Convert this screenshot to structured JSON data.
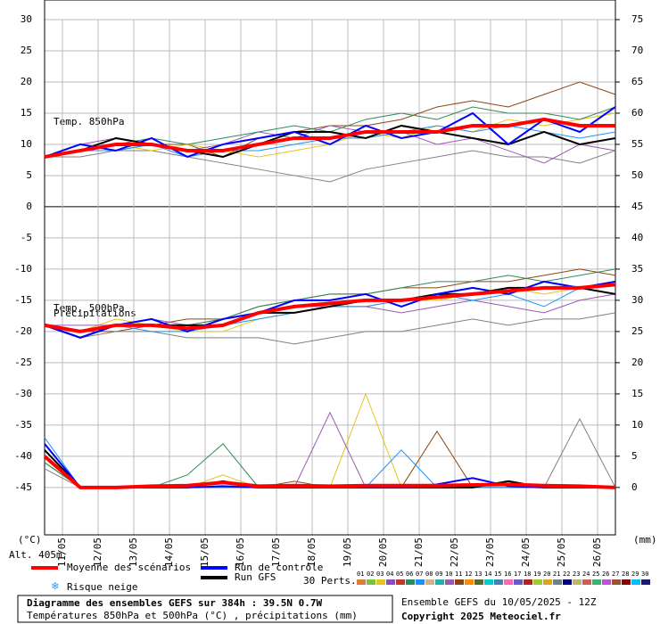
{
  "chart_data": {
    "type": "line",
    "xlim": [
      0,
      384
    ],
    "xticks": [
      {
        "value": 12,
        "label": "11/05"
      },
      {
        "value": 36,
        "label": "12/05"
      },
      {
        "value": 60,
        "label": "13/05"
      },
      {
        "value": 84,
        "label": "14/05"
      },
      {
        "value": 108,
        "label": "15/05"
      },
      {
        "value": 132,
        "label": "16/05"
      },
      {
        "value": 156,
        "label": "17/05"
      },
      {
        "value": 180,
        "label": "18/05"
      },
      {
        "value": 204,
        "label": "19/05"
      },
      {
        "value": 228,
        "label": "20/05"
      },
      {
        "value": 252,
        "label": "21/05"
      },
      {
        "value": 276,
        "label": "22/05"
      },
      {
        "value": 300,
        "label": "23/05"
      },
      {
        "value": 324,
        "label": "24/05"
      },
      {
        "value": 348,
        "label": "25/05"
      },
      {
        "value": 372,
        "label": "26/05"
      }
    ],
    "ylim": [
      -52.6,
      30
    ],
    "yticks": [
      30,
      25,
      20,
      15,
      10,
      5,
      0,
      -5,
      -10,
      -15,
      -20,
      -25,
      -30,
      -35,
      -40,
      -45
    ],
    "y2lim": [
      -7.6,
      75
    ],
    "y2ticks": [
      75,
      70,
      65,
      60,
      55,
      50,
      45,
      40,
      35,
      30,
      25,
      20,
      15,
      10,
      5,
      0
    ],
    "grid": true,
    "ylabel": "(°C)",
    "y2label": "(mm)",
    "altitude": "Alt. 405m",
    "panel_labels": [
      "Temp. 850hPa",
      "Temp. 500hPa",
      "Précipitations"
    ],
    "x": [
      0,
      24,
      48,
      72,
      96,
      120,
      144,
      168,
      192,
      216,
      240,
      264,
      288,
      312,
      336,
      360,
      384
    ],
    "series": [
      {
        "name": "Moyenne des scénarios",
        "color": "#ff0000",
        "values_850": [
          8,
          9,
          10,
          10,
          9,
          9,
          10,
          11,
          11,
          12,
          12,
          12,
          13,
          13,
          14,
          13,
          13
        ],
        "values_500": [
          -19,
          -20,
          -19,
          -19,
          -19.5,
          -19,
          -17,
          -16,
          -15.5,
          -15,
          -15,
          -14.5,
          -14,
          -13.5,
          -13,
          -13,
          -12.5
        ],
        "precip": [
          5,
          0,
          0,
          0.2,
          0.3,
          0.8,
          0.2,
          0.3,
          0.2,
          0.3,
          0.3,
          0.3,
          0.4,
          0.5,
          0.3,
          0.2,
          0
        ]
      },
      {
        "name": "Run de contrôle",
        "color": "#0000ff",
        "values_850": [
          8,
          10,
          9,
          11,
          8,
          10,
          11,
          12,
          10,
          13,
          11,
          12,
          15,
          10,
          14,
          12,
          16
        ],
        "values_500": [
          -19,
          -21,
          -19,
          -18,
          -20,
          -18,
          -17,
          -15,
          -15,
          -14,
          -16,
          -14,
          -13,
          -14,
          -12,
          -13,
          -12
        ],
        "precip": [
          7,
          0,
          0,
          0,
          0,
          0.2,
          0,
          0,
          0,
          0,
          0,
          0.5,
          1.5,
          0.2,
          0,
          0,
          0
        ]
      },
      {
        "name": "Run GFS",
        "color": "#000000",
        "values_850": [
          8,
          9,
          11,
          10,
          9,
          8,
          10,
          12,
          12,
          11,
          13,
          12,
          11,
          10,
          12,
          10,
          11
        ],
        "values_500": [
          -19,
          -21,
          -19,
          -19,
          -19,
          -19,
          -17,
          -17,
          -16,
          -15,
          -15,
          -14,
          -14,
          -13,
          -13,
          -13,
          -14
        ],
        "precip": [
          6,
          0,
          0,
          0,
          0,
          1,
          0,
          0,
          0,
          0,
          0,
          0,
          0,
          1,
          0,
          0,
          0
        ]
      }
    ],
    "snow_label": "Risque neige",
    "perturbations": {
      "label": "30 Perts.",
      "names": [
        "01",
        "02",
        "03",
        "04",
        "05",
        "06",
        "07",
        "08",
        "09",
        "10",
        "11",
        "12",
        "13",
        "14",
        "15",
        "16",
        "17",
        "18",
        "19",
        "20",
        "21",
        "22",
        "23",
        "24",
        "25",
        "26",
        "27",
        "28",
        "29",
        "30"
      ],
      "colors": [
        "#e07b39",
        "#7cc242",
        "#e8c31c",
        "#8a4fbf",
        "#c0392b",
        "#2e8b57",
        "#1e90ff",
        "#d2b48c",
        "#20b2aa",
        "#9b59b6",
        "#8b4513",
        "#ff8c00",
        "#556b2f",
        "#00ced1",
        "#4682b4",
        "#ff69b4",
        "#6a5acd",
        "#b22222",
        "#9acd32",
        "#daa520",
        "#708090",
        "#000080",
        "#bdb76b",
        "#cd5c5c",
        "#3cb371",
        "#ba55d3",
        "#a0522d",
        "#8b0000",
        "#00bfff",
        "#191970"
      ],
      "members": [
        {
          "color": "#8b4513",
          "values_850": [
            8,
            10,
            9,
            10,
            10,
            8,
            11,
            12,
            13,
            13,
            14,
            16,
            17,
            16,
            18,
            20,
            18
          ],
          "values_500": [
            -19,
            -20,
            -20,
            -19,
            -18,
            -18,
            -16,
            -15,
            -14,
            -14,
            -13,
            -13,
            -12,
            -12,
            -11,
            -10,
            -11
          ],
          "precip": [
            4,
            0,
            0,
            0,
            0,
            0,
            0,
            1,
            0,
            0,
            0,
            9,
            0,
            0,
            0,
            0,
            0
          ]
        },
        {
          "color": "#808080",
          "values_850": [
            8,
            8,
            9,
            9,
            8,
            7,
            6,
            5,
            4,
            6,
            7,
            8,
            9,
            8,
            8,
            7,
            9
          ],
          "values_500": [
            -19,
            -21,
            -20,
            -20,
            -21,
            -21,
            -21,
            -22,
            -21,
            -20,
            -20,
            -19,
            -18,
            -19,
            -18,
            -18,
            -17
          ],
          "precip": [
            3,
            0,
            0,
            0,
            0,
            0,
            0,
            0,
            0,
            0,
            0,
            0,
            0,
            0,
            0,
            11,
            0
          ]
        },
        {
          "color": "#e8c31c",
          "values_850": [
            8,
            9,
            10,
            9,
            10,
            9,
            8,
            9,
            10,
            12,
            11,
            13,
            12,
            14,
            13,
            14,
            15
          ],
          "values_500": [
            -19,
            -20,
            -18,
            -19,
            -20,
            -20,
            -18,
            -17,
            -16,
            -16,
            -15,
            -15,
            -14,
            -13,
            -14,
            -13,
            -12
          ],
          "precip": [
            5,
            0,
            0,
            0,
            0,
            2,
            0,
            0,
            0,
            15,
            0,
            0,
            0,
            0,
            0,
            0,
            0
          ]
        },
        {
          "color": "#9b59b6",
          "values_850": [
            8,
            10,
            11,
            10,
            9,
            10,
            12,
            11,
            13,
            12,
            12,
            10,
            11,
            9,
            7,
            10,
            9
          ],
          "values_500": [
            -19,
            -19,
            -19,
            -18,
            -19,
            -18,
            -17,
            -16,
            -16,
            -16,
            -17,
            -16,
            -15,
            -16,
            -17,
            -15,
            -14
          ],
          "precip": [
            6,
            0,
            0,
            0,
            0,
            0,
            0,
            0,
            12,
            0,
            0,
            0,
            0,
            0,
            0,
            0,
            0
          ]
        },
        {
          "color": "#2e8b57",
          "values_850": [
            8,
            9,
            10,
            11,
            10,
            11,
            12,
            13,
            12,
            14,
            15,
            14,
            16,
            15,
            15,
            14,
            16
          ],
          "values_500": [
            -19,
            -20,
            -19,
            -19,
            -19,
            -18,
            -16,
            -15,
            -14,
            -14,
            -13,
            -12,
            -12,
            -11,
            -12,
            -11,
            -10
          ],
          "precip": [
            4,
            0,
            0,
            0,
            2,
            7,
            0,
            0,
            0,
            0,
            0,
            0,
            0,
            0,
            0,
            0,
            0
          ]
        },
        {
          "color": "#1e90ff",
          "values_850": [
            8,
            9,
            9,
            10,
            8,
            9,
            9,
            10,
            11,
            11,
            12,
            13,
            12,
            13,
            12,
            11,
            12
          ],
          "values_500": [
            -19,
            -20,
            -19,
            -20,
            -20,
            -19,
            -18,
            -17,
            -16,
            -16,
            -15,
            -14,
            -15,
            -14,
            -16,
            -13,
            -12
          ],
          "precip": [
            8,
            0,
            0,
            0,
            0,
            0,
            0,
            0,
            0,
            0,
            6,
            0,
            0,
            0,
            0,
            0,
            0
          ]
        }
      ]
    },
    "footer": {
      "title": "Diagramme des ensembles GEFS sur 384h : 39.5N 0.7W",
      "subtitle": "Températures 850hPa et 500hPa (°C) , précipitations (mm)",
      "run": "Ensemble GEFS du 10/05/2025 - 12Z",
      "copyright": "Copyright 2025 Meteociel.fr"
    }
  }
}
